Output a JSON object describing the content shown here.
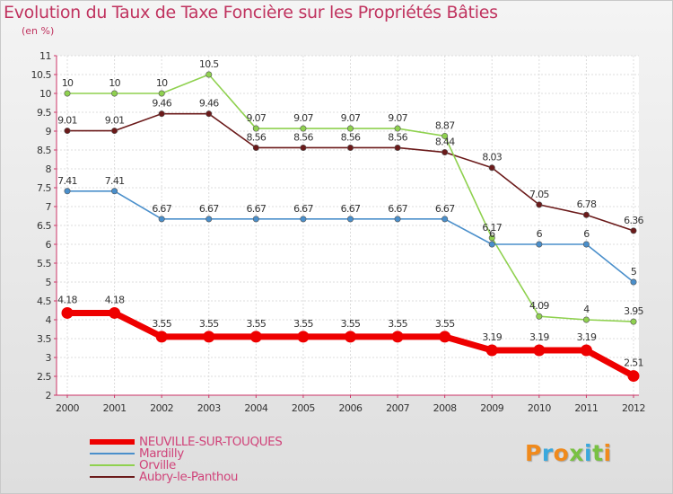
{
  "header": {
    "title": "Evolution du Taux de Taxe Foncière sur les Propriétés Bâties",
    "subtitle": "(en %)"
  },
  "logo": {
    "text": "Proxiti"
  },
  "chart_data": {
    "type": "line",
    "title": "Evolution du Taux de Taxe Foncière sur les Propriétés Bâties",
    "ylabel": "(en %)",
    "xlabel": "",
    "categories": [
      "2000",
      "2001",
      "2002",
      "2003",
      "2004",
      "2005",
      "2006",
      "2007",
      "2008",
      "2009",
      "2010",
      "2011",
      "2012"
    ],
    "ylim": [
      2,
      11
    ],
    "yticks": [
      2,
      2.5,
      3,
      3.5,
      4,
      4.5,
      5,
      5.5,
      6,
      6.5,
      7,
      7.5,
      8,
      8.5,
      9,
      9.5,
      10,
      10.5,
      11
    ],
    "ytick_labels": [
      "2",
      "2.5",
      "3",
      "3.5",
      "4",
      "4.5",
      "5",
      "5.5",
      "6",
      "6.5",
      "7",
      "7.5",
      "8",
      "8.5",
      "9",
      "9.5",
      "10",
      "10.5",
      "11"
    ],
    "grid": true,
    "legend_position": "bottom-left",
    "series": [
      {
        "name": "Aubry-le-Panthou",
        "color": "#6b1a1a",
        "values": [
          9.01,
          9.01,
          9.46,
          9.46,
          8.56,
          8.56,
          8.56,
          8.56,
          8.44,
          8.03,
          7.05,
          6.78,
          6.36
        ],
        "labels": [
          "9.01",
          "9.01",
          "9.46",
          "9.46",
          "8.56",
          "8.56",
          "8.56",
          "8.56",
          "8.44",
          "8.03",
          "7.05",
          "6.78",
          "6.36"
        ]
      },
      {
        "name": "Orville",
        "color": "#8fd14f",
        "values": [
          10,
          10,
          10,
          10.5,
          9.07,
          9.07,
          9.07,
          9.07,
          8.87,
          6.17,
          4.09,
          4,
          3.95
        ],
        "labels": [
          "10",
          "10",
          "10",
          "10.5",
          "9.07",
          "9.07",
          "9.07",
          "9.07",
          "8.87",
          "6.17",
          "4.09",
          "4",
          "3.95"
        ]
      },
      {
        "name": "Mardilly",
        "color": "#4a8fcb",
        "values": [
          7.41,
          7.41,
          6.67,
          6.67,
          6.67,
          6.67,
          6.67,
          6.67,
          6.67,
          6,
          6,
          6,
          5
        ],
        "labels": [
          "7.41",
          "7.41",
          "6.67",
          "6.67",
          "6.67",
          "6.67",
          "6.67",
          "6.67",
          "6.67",
          "6",
          "6",
          "6",
          "5"
        ]
      },
      {
        "name": "NEUVILLE-SUR-TOUQUES",
        "color": "#ee0000",
        "values": [
          4.18,
          4.18,
          3.55,
          3.55,
          3.55,
          3.55,
          3.55,
          3.55,
          3.55,
          3.19,
          3.19,
          3.19,
          2.51
        ],
        "labels": [
          "4.18",
          "4.18",
          "3.55",
          "3.55",
          "3.55",
          "3.55",
          "3.55",
          "3.55",
          "3.55",
          "3.19",
          "3.19",
          "3.19",
          "2.51"
        ]
      }
    ],
    "legend": [
      {
        "name": "NEUVILLE-SUR-TOUQUES",
        "color": "#ee0000"
      },
      {
        "name": "Mardilly",
        "color": "#4a8fcb"
      },
      {
        "name": "Orville",
        "color": "#8fd14f"
      },
      {
        "name": "Aubry-le-Panthou",
        "color": "#6b1a1a"
      }
    ]
  }
}
